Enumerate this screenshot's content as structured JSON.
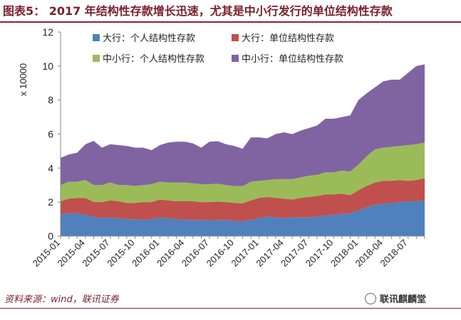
{
  "header": {
    "title": "图表5： 2017 年结构性存款增长迅速，尤其是中小行发行的单位结构性存款"
  },
  "footer": {
    "source": "资料来源：wind，联讯证券",
    "watermark": "联讯麒麟堂"
  },
  "chart_data": {
    "type": "area",
    "stacked": true,
    "ylabel": "x 10000",
    "ylim": [
      0,
      12
    ],
    "yticks": [
      0,
      2,
      4,
      6,
      8,
      10,
      12
    ],
    "grid": false,
    "legend_position": "top",
    "x": [
      "2015-01",
      "2015-02",
      "2015-03",
      "2015-04",
      "2015-05",
      "2015-06",
      "2015-07",
      "2015-08",
      "2015-09",
      "2015-10",
      "2015-11",
      "2015-12",
      "2016-01",
      "2016-02",
      "2016-03",
      "2016-04",
      "2016-05",
      "2016-06",
      "2016-07",
      "2016-08",
      "2016-09",
      "2016-10",
      "2016-11",
      "2016-12",
      "2017-01",
      "2017-02",
      "2017-03",
      "2017-04",
      "2017-05",
      "2017-06",
      "2017-07",
      "2017-08",
      "2017-09",
      "2017-10",
      "2017-11",
      "2017-12",
      "2018-01",
      "2018-02",
      "2018-03",
      "2018-04",
      "2018-05",
      "2018-06",
      "2018-07",
      "2018-08",
      "2018-09"
    ],
    "x_tick_labels": [
      "2015-01",
      "2015-04",
      "2015-07",
      "2015-10",
      "2016-01",
      "2016-04",
      "2016-07",
      "2016-10",
      "2017-01",
      "2017-04",
      "2017-07",
      "2017-10",
      "2018-01",
      "2018-04",
      "2018-07"
    ],
    "series": [
      {
        "name": "大行：个人结构性存款",
        "color": "#4f81bd",
        "values": [
          1.25,
          1.35,
          1.35,
          1.25,
          1.15,
          1.05,
          1.1,
          1.05,
          1.0,
          1.0,
          0.95,
          1.0,
          1.1,
          1.05,
          1.0,
          0.95,
          0.95,
          0.95,
          0.92,
          0.95,
          0.95,
          0.9,
          0.88,
          0.95,
          1.05,
          1.15,
          1.1,
          1.05,
          1.1,
          1.1,
          1.1,
          1.15,
          1.2,
          1.25,
          1.3,
          1.35,
          1.5,
          1.7,
          1.85,
          1.9,
          1.95,
          2.0,
          2.05,
          2.05,
          2.1
        ]
      },
      {
        "name": "大行：单位结构性存款",
        "color": "#c0504d",
        "values": [
          0.8,
          0.85,
          0.9,
          1.0,
          0.85,
          0.95,
          1.0,
          1.0,
          0.95,
          0.95,
          1.05,
          1.0,
          1.05,
          1.05,
          1.05,
          1.1,
          1.1,
          1.05,
          1.08,
          1.08,
          1.05,
          1.05,
          1.05,
          1.15,
          1.2,
          1.15,
          1.15,
          1.15,
          1.05,
          1.15,
          1.2,
          1.2,
          1.25,
          1.2,
          1.2,
          1.05,
          1.2,
          1.25,
          1.3,
          1.35,
          1.3,
          1.3,
          1.2,
          1.25,
          1.3
        ]
      },
      {
        "name": "中小行：个人结构性存款",
        "color": "#9bbb59",
        "values": [
          0.95,
          1.0,
          0.95,
          1.05,
          1.0,
          1.0,
          1.05,
          0.95,
          1.05,
          1.0,
          1.0,
          1.05,
          1.05,
          1.05,
          1.1,
          1.1,
          1.05,
          1.05,
          1.05,
          1.05,
          1.0,
          1.0,
          1.0,
          1.1,
          1.0,
          1.0,
          1.1,
          1.15,
          1.2,
          1.2,
          1.25,
          1.25,
          1.3,
          1.3,
          1.35,
          1.4,
          1.5,
          1.75,
          1.95,
          1.95,
          2.0,
          2.0,
          2.1,
          2.1,
          2.1
        ]
      },
      {
        "name": "中小行：单位结构性存款",
        "color": "#8064a2",
        "values": [
          1.6,
          1.6,
          1.7,
          2.1,
          2.6,
          2.2,
          2.25,
          2.35,
          2.3,
          2.25,
          2.2,
          2.0,
          2.15,
          2.35,
          2.4,
          2.4,
          2.35,
          2.15,
          2.5,
          2.5,
          2.4,
          2.35,
          2.2,
          2.6,
          2.55,
          2.45,
          2.65,
          2.75,
          2.65,
          2.75,
          2.8,
          2.9,
          3.15,
          3.15,
          3.15,
          3.3,
          3.8,
          3.7,
          3.65,
          3.9,
          3.95,
          3.9,
          4.25,
          4.6,
          4.6
        ]
      }
    ]
  }
}
